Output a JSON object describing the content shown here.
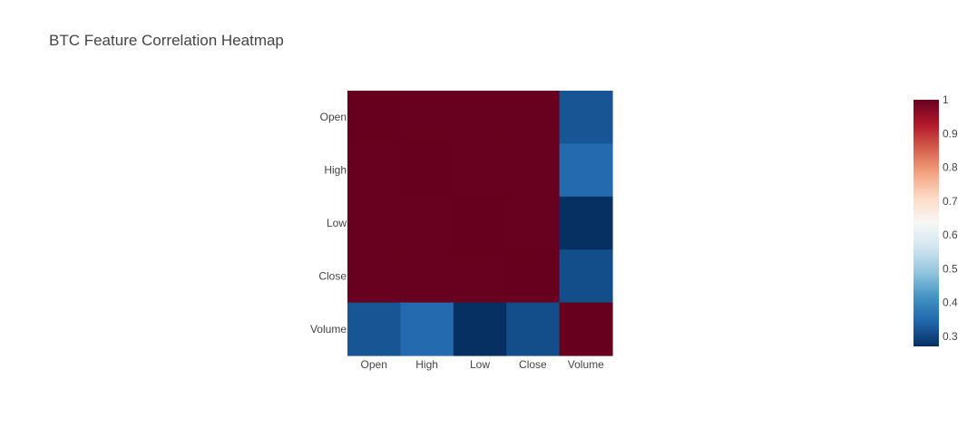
{
  "chart_data": {
    "type": "heatmap",
    "title": "BTC Feature Correlation Heatmap",
    "x": [
      "Open",
      "High",
      "Low",
      "Close",
      "Volume"
    ],
    "y": [
      "Open",
      "High",
      "Low",
      "Close",
      "Volume"
    ],
    "z": [
      [
        1.0,
        0.999,
        0.999,
        0.999,
        0.32
      ],
      [
        0.999,
        1.0,
        0.999,
        0.999,
        0.35
      ],
      [
        0.999,
        0.999,
        1.0,
        0.999,
        0.27
      ],
      [
        0.999,
        0.999,
        0.999,
        1.0,
        0.31
      ],
      [
        0.32,
        0.35,
        0.27,
        0.31,
        1.0
      ]
    ],
    "colorscale": "RdBu reversed",
    "zmin": 0.27,
    "zmax": 1.0,
    "colorbar": {
      "ticks": [
        1,
        0.9,
        0.8,
        0.7,
        0.6,
        0.5,
        0.4,
        0.3
      ],
      "tick_labels": [
        "1",
        "0.9",
        "0.8",
        "0.7",
        "0.6",
        "0.5",
        "0.4",
        "0.3"
      ]
    },
    "colors": {
      "stops": [
        "#053061",
        "#2166ac",
        "#4393c3",
        "#92c5de",
        "#d1e5f0",
        "#f7f7f7",
        "#fddbc7",
        "#f4a582",
        "#d6604d",
        "#b2182b",
        "#67001f"
      ]
    }
  }
}
